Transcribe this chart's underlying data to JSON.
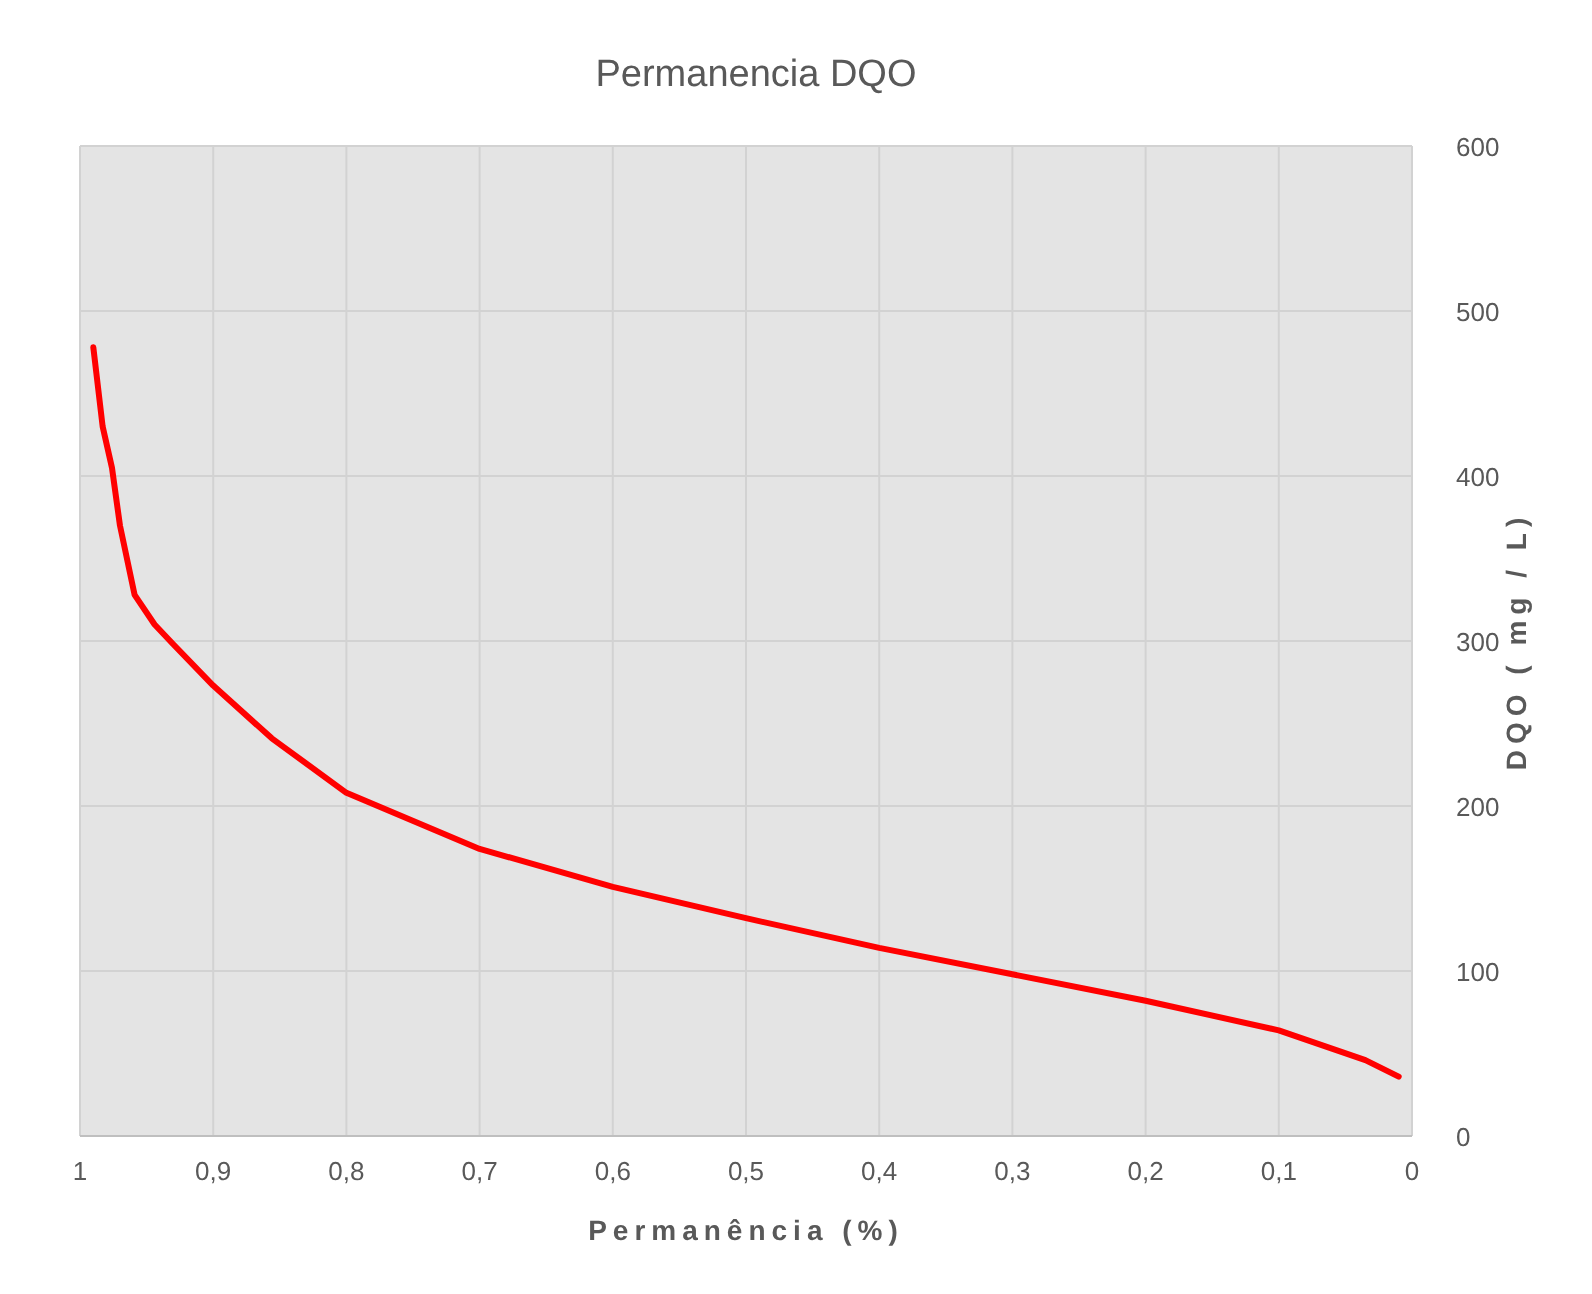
{
  "chart_data": {
    "type": "line",
    "title": "Permanencia DQO",
    "xlabel": "Permanência (%)",
    "y2label": "DQO ( mg / L)",
    "xlim": [
      1,
      0
    ],
    "xticks": [
      1,
      {
        "value": 0.9,
        "label": "0,9"
      },
      {
        "value": 0.8,
        "label": "0,8"
      },
      {
        "value": 0.7,
        "label": "0,7"
      },
      {
        "value": 0.6,
        "label": "0,6"
      },
      {
        "value": 0.5,
        "label": "0,5"
      },
      {
        "value": 0.4,
        "label": "0,4"
      },
      {
        "value": 0.3,
        "label": "0,3"
      },
      {
        "value": 0.2,
        "label": "0,2"
      },
      {
        "value": 0.1,
        "label": "0,1"
      },
      0
    ],
    "y2lim": [
      0,
      600
    ],
    "y2ticks": [
      0,
      100,
      200,
      300,
      400,
      500,
      600
    ],
    "grid": true,
    "x": [
      0.99,
      0.983,
      0.976,
      0.97,
      0.959,
      0.944,
      0.93,
      0.9,
      0.856,
      0.8,
      0.7,
      0.6,
      0.5,
      0.4,
      0.3,
      0.2,
      0.1,
      0.035,
      0.01
    ],
    "series": [
      {
        "color": "#ff0000",
        "axis": "y2",
        "values": [
          478,
          430,
          405,
          370,
          328,
          310,
          298,
          273,
          241,
          208,
          174,
          151,
          132,
          114,
          98,
          82,
          64,
          46,
          36
        ]
      }
    ]
  }
}
